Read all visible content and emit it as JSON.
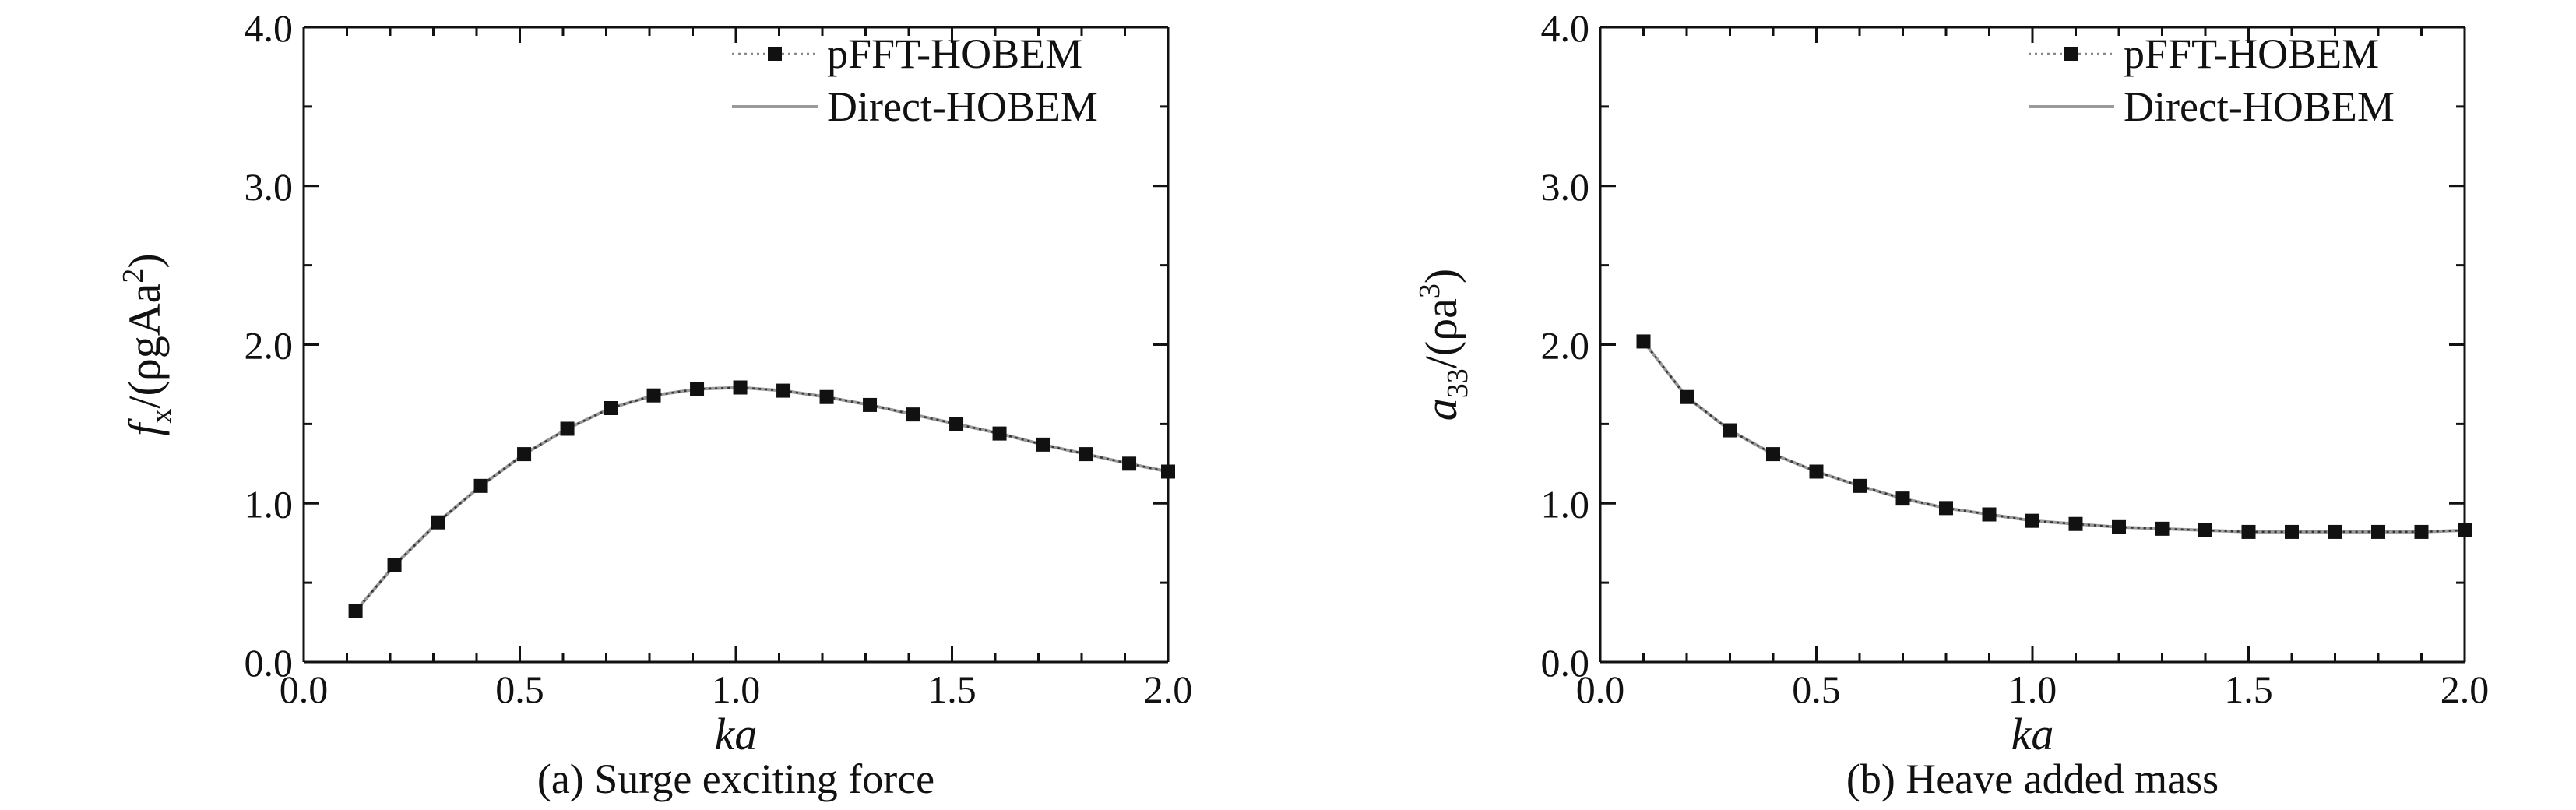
{
  "chart_data": [
    {
      "type": "line",
      "caption": "(a) Surge exciting force",
      "xlabel": "ka",
      "ylabel": {
        "base": "f",
        "sub1": "x",
        "mid": "/(ρgAa",
        "sup": "2",
        "end": ")"
      },
      "xlim": [
        0.0,
        2.0
      ],
      "ylim": [
        0.0,
        4.0
      ],
      "xticks": [
        "0.0",
        "0.5",
        "1.0",
        "1.5",
        "2.0"
      ],
      "yticks": [
        "0.0",
        "1.0",
        "2.0",
        "3.0",
        "4.0"
      ],
      "grid": false,
      "legend_position": "top-right",
      "series": [
        {
          "name": "pFFT-HOBEM",
          "style": "markers-dotted",
          "x": [
            0.12,
            0.21,
            0.31,
            0.41,
            0.51,
            0.61,
            0.71,
            0.81,
            0.91,
            1.01,
            1.11,
            1.21,
            1.31,
            1.41,
            1.51,
            1.61,
            1.71,
            1.81,
            1.91,
            2.0
          ],
          "y": [
            0.32,
            0.61,
            0.88,
            1.11,
            1.31,
            1.47,
            1.6,
            1.68,
            1.72,
            1.73,
            1.71,
            1.67,
            1.62,
            1.56,
            1.5,
            1.44,
            1.37,
            1.31,
            1.25,
            1.2
          ]
        },
        {
          "name": "Direct-HOBEM",
          "style": "line",
          "x": [
            0.12,
            0.21,
            0.31,
            0.41,
            0.51,
            0.61,
            0.71,
            0.81,
            0.91,
            1.01,
            1.11,
            1.21,
            1.31,
            1.41,
            1.51,
            1.61,
            1.71,
            1.81,
            1.91,
            2.0
          ],
          "y": [
            0.32,
            0.61,
            0.88,
            1.11,
            1.31,
            1.47,
            1.6,
            1.68,
            1.72,
            1.73,
            1.71,
            1.67,
            1.62,
            1.56,
            1.5,
            1.44,
            1.37,
            1.31,
            1.25,
            1.2
          ]
        }
      ]
    },
    {
      "type": "line",
      "caption": "(b) Heave added mass",
      "xlabel": "ka",
      "ylabel": {
        "base": "a",
        "sub1": "33",
        "mid": "/(ρa",
        "sup": "3",
        "end": ")"
      },
      "xlim": [
        0.0,
        2.0
      ],
      "ylim": [
        0.0,
        4.0
      ],
      "xticks": [
        "0.0",
        "0.5",
        "1.0",
        "1.5",
        "2.0"
      ],
      "yticks": [
        "0.0",
        "1.0",
        "2.0",
        "3.0",
        "4.0"
      ],
      "grid": false,
      "legend_position": "top-right",
      "series": [
        {
          "name": "pFFT-HOBEM",
          "style": "markers-dotted",
          "x": [
            0.1,
            0.2,
            0.3,
            0.4,
            0.5,
            0.6,
            0.7,
            0.8,
            0.9,
            1.0,
            1.1,
            1.2,
            1.3,
            1.4,
            1.5,
            1.6,
            1.7,
            1.8,
            1.9,
            2.0
          ],
          "y": [
            2.02,
            1.67,
            1.46,
            1.31,
            1.2,
            1.11,
            1.03,
            0.97,
            0.93,
            0.89,
            0.87,
            0.85,
            0.84,
            0.83,
            0.82,
            0.82,
            0.82,
            0.82,
            0.82,
            0.83
          ]
        },
        {
          "name": "Direct-HOBEM",
          "style": "line",
          "x": [
            0.1,
            0.2,
            0.3,
            0.4,
            0.5,
            0.6,
            0.7,
            0.8,
            0.9,
            1.0,
            1.1,
            1.2,
            1.3,
            1.4,
            1.5,
            1.6,
            1.7,
            1.8,
            1.9,
            2.0
          ],
          "y": [
            2.02,
            1.67,
            1.46,
            1.31,
            1.2,
            1.11,
            1.03,
            0.97,
            0.93,
            0.89,
            0.87,
            0.85,
            0.84,
            0.83,
            0.82,
            0.82,
            0.82,
            0.82,
            0.82,
            0.83
          ]
        }
      ]
    }
  ]
}
